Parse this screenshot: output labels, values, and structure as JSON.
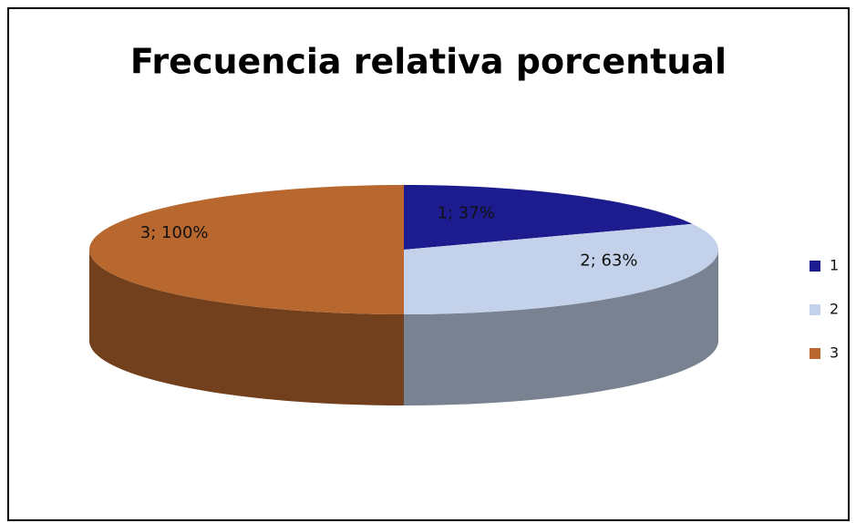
{
  "chart_data": {
    "type": "pie3d",
    "title": "Frecuencia relativa porcentual",
    "categories": [
      "1",
      "2",
      "3"
    ],
    "series": [
      {
        "values": [
          37,
          63,
          100
        ],
        "value_labels": [
          "1; 37%",
          "2; 63%",
          "3; 100%"
        ],
        "colors": [
          "#1c1c8e",
          "#c3d2ea",
          "#b8682f"
        ]
      }
    ],
    "legend": "right"
  }
}
